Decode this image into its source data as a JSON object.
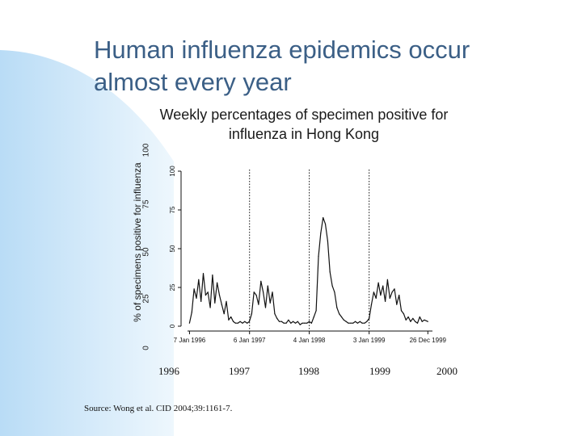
{
  "slide": {
    "title_line1": "Human influenza epidemics occur",
    "title_line2": "almost every year",
    "source": "Source: Wong et al. CID 2004;39:1161-7."
  },
  "colors": {
    "title": "#3b5f86",
    "decor": "#cfe6f8",
    "line": "#111111"
  },
  "chart_data": {
    "type": "line",
    "title": "Weekly percentages of specimen positive for influenza in Hong Kong",
    "ylabel": "% of specimens positive for influenza",
    "ylim": [
      0,
      100
    ],
    "outer_yticks": [
      "0",
      "25",
      "50",
      "75",
      "100"
    ],
    "inner_yticks": [
      "0",
      "25",
      "50",
      "75",
      "100"
    ],
    "x_tick_labels": [
      "7 Jan 1996",
      "6 Jan 1997",
      "4 Jan 1998",
      "3 Jan 1999",
      "26 Dec 1999"
    ],
    "year_labels": [
      "1996",
      "1997",
      "1998",
      "1999",
      "2000"
    ],
    "grid": false,
    "year_dividers": [
      "6 Jan 1997",
      "4 Jan 1998",
      "3 Jan 1999"
    ],
    "series": [
      {
        "x": [
          "1996-01-07",
          "1996-01-21",
          "1996-02-04",
          "1996-02-18",
          "1996-03-03",
          "1996-03-17",
          "1996-03-31",
          "1996-04-14",
          "1996-04-28",
          "1996-05-12",
          "1996-05-26",
          "1996-06-09",
          "1996-06-23",
          "1996-07-07",
          "1996-07-21",
          "1996-08-04",
          "1996-08-18",
          "1996-09-01",
          "1996-09-15",
          "1996-09-29",
          "1996-10-13",
          "1996-10-27",
          "1996-11-10",
          "1996-11-24",
          "1996-12-08",
          "1996-12-22",
          "1997-01-05",
          "1997-01-19",
          "1997-02-02",
          "1997-02-16",
          "1997-03-02",
          "1997-03-16",
          "1997-03-30",
          "1997-04-13",
          "1997-04-27",
          "1997-05-11",
          "1997-05-25",
          "1997-06-08",
          "1997-06-22",
          "1997-07-06",
          "1997-07-20",
          "1997-08-03",
          "1997-08-17",
          "1997-08-31",
          "1997-09-14",
          "1997-09-28",
          "1997-10-12",
          "1997-10-26",
          "1997-11-09",
          "1997-11-23",
          "1997-12-07",
          "1997-12-21",
          "1998-01-04",
          "1998-01-18",
          "1998-02-01",
          "1998-02-15",
          "1998-03-01",
          "1998-03-15",
          "1998-03-29",
          "1998-04-12",
          "1998-04-26",
          "1998-05-10",
          "1998-05-24",
          "1998-06-07",
          "1998-06-21",
          "1998-07-05",
          "1998-07-19",
          "1998-08-02",
          "1998-08-16",
          "1998-08-30",
          "1998-09-13",
          "1998-09-27",
          "1998-10-11",
          "1998-10-25",
          "1998-11-08",
          "1998-11-22",
          "1998-12-06",
          "1998-12-20",
          "1999-01-03",
          "1999-01-17",
          "1999-01-31",
          "1999-02-14",
          "1999-02-28",
          "1999-03-14",
          "1999-03-28",
          "1999-04-11",
          "1999-04-25",
          "1999-05-09",
          "1999-05-23",
          "1999-06-06",
          "1999-06-20",
          "1999-07-04",
          "1999-07-18",
          "1999-08-01",
          "1999-08-15",
          "1999-08-29",
          "1999-09-12",
          "1999-09-26",
          "1999-10-10",
          "1999-10-24",
          "1999-11-07",
          "1999-11-21",
          "1999-12-05",
          "1999-12-26"
        ],
        "values": [
          2,
          9,
          24,
          18,
          30,
          16,
          34,
          20,
          22,
          12,
          33,
          15,
          28,
          20,
          14,
          8,
          16,
          4,
          6,
          3,
          2,
          2,
          3,
          2,
          3,
          2,
          3,
          8,
          22,
          20,
          14,
          29,
          22,
          12,
          26,
          15,
          22,
          8,
          5,
          3,
          3,
          2,
          2,
          4,
          2,
          3,
          2,
          3,
          1,
          2,
          2,
          2,
          3,
          2,
          6,
          10,
          45,
          60,
          70,
          66,
          55,
          35,
          26,
          22,
          12,
          8,
          6,
          4,
          3,
          2,
          2,
          2,
          3,
          2,
          3,
          2,
          2,
          3,
          5,
          14,
          22,
          18,
          28,
          20,
          26,
          16,
          30,
          18,
          22,
          24,
          14,
          20,
          10,
          8,
          4,
          6,
          3,
          5,
          3,
          2,
          6,
          3,
          4,
          3
        ]
      }
    ]
  }
}
